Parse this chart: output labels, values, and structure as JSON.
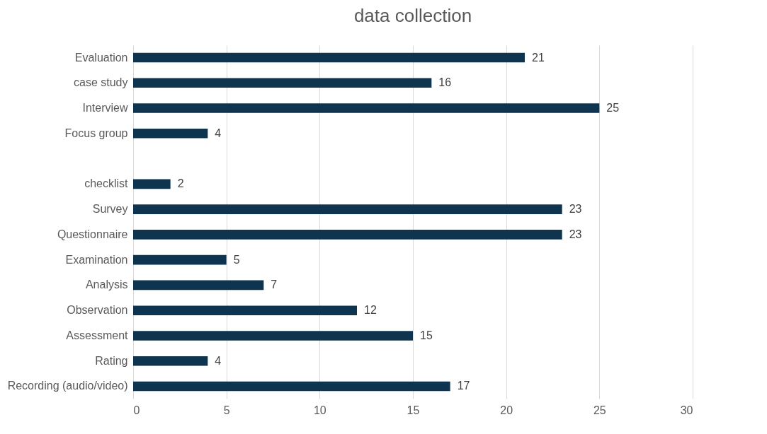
{
  "chart_data": {
    "type": "bar",
    "orientation": "horizontal",
    "title": "data collection",
    "categories": [
      "Evaluation",
      "case study",
      "Interview",
      "Focus group",
      null,
      "checklist",
      "Survey",
      "Questionnaire",
      "Examination",
      "Analysis",
      "Observation",
      "Assessment",
      "Rating",
      "Recording (audio/video)"
    ],
    "values": [
      21,
      16,
      25,
      4,
      null,
      2,
      23,
      23,
      5,
      7,
      12,
      15,
      4,
      17
    ],
    "color": "#0e3450",
    "xlim": [
      0,
      30
    ],
    "xticks": [
      0,
      5,
      10,
      15,
      20,
      25,
      30
    ],
    "grid": "x",
    "data_labels": true
  }
}
